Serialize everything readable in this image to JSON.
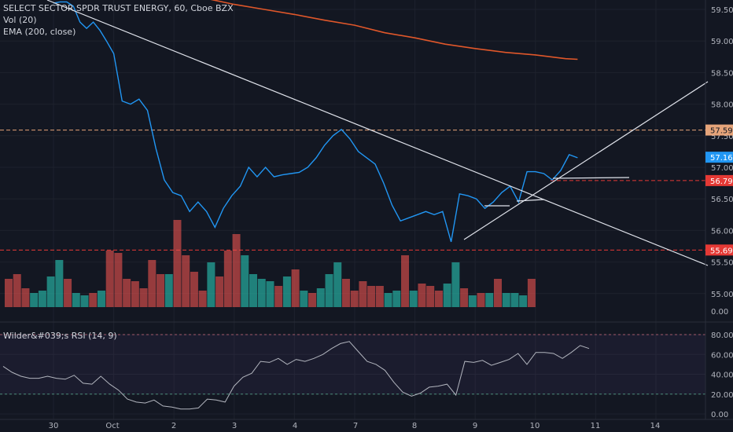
{
  "legend": {
    "title": "SELECT SECTOR SPDR TRUST ENERGY, 60, Cboe BZX",
    "vol": "Vol (20)",
    "ema": "EMA (200, close)",
    "rsi": "Wilder&#039;s RSI (14, 9)"
  },
  "colors": {
    "background": "#131722",
    "price_line": "#2196f3",
    "ema_line": "#e0572a",
    "vol_up": "#26a69a",
    "vol_down": "#ef5350",
    "trend_lines": "#e0e3eb",
    "rsi_line": "#b2b5be",
    "level_orange": "#e5a47a",
    "level_red": "#e53935"
  },
  "chart_data": {
    "type": "line",
    "x_tick_labels": [
      "30",
      "Oct",
      "2",
      "3",
      "4",
      "7",
      "8",
      "9",
      "10",
      "11",
      "14"
    ],
    "price_axis_ticks": [
      "59.50",
      "59.00",
      "58.50",
      "58.00",
      "57.50",
      "57.00",
      "56.50",
      "56.00",
      "55.50",
      "55.00"
    ],
    "volume_axis_ticks": [
      "0.00"
    ],
    "rsi_axis_ticks": [
      "80.00",
      "60.00",
      "40.00",
      "20.00",
      "0.00"
    ],
    "price_ylim": [
      54.7,
      59.7
    ],
    "rsi_ylim": [
      0,
      85
    ],
    "price_tags": [
      {
        "label": "57.59",
        "value": 57.59,
        "style": "orange"
      },
      {
        "label": "57.16",
        "value": 57.16,
        "style": "blue"
      },
      {
        "label": "56.79",
        "value": 56.79,
        "style": "red"
      },
      {
        "label": "55.69",
        "value": 55.69,
        "style": "red"
      }
    ],
    "horizontal_levels": [
      {
        "value": 57.59,
        "style": "orange"
      },
      {
        "value": 56.79,
        "style": "red"
      },
      {
        "value": 55.69,
        "style": "red"
      }
    ],
    "price_series": [
      [
        0,
        59.6
      ],
      [
        0.11,
        59.62
      ],
      [
        0.22,
        59.62
      ],
      [
        0.33,
        59.55
      ],
      [
        0.44,
        59.3
      ],
      [
        0.55,
        59.2
      ],
      [
        0.66,
        59.3
      ],
      [
        0.77,
        59.17
      ],
      [
        0.88,
        59.0
      ],
      [
        1.0,
        58.8
      ],
      [
        1.14,
        58.05
      ],
      [
        1.28,
        58.0
      ],
      [
        1.42,
        58.08
      ],
      [
        1.56,
        57.9
      ],
      [
        1.7,
        57.3
      ],
      [
        1.84,
        56.8
      ],
      [
        1.98,
        56.6
      ],
      [
        2.12,
        56.55
      ],
      [
        2.26,
        56.3
      ],
      [
        2.4,
        56.45
      ],
      [
        2.54,
        56.3
      ],
      [
        2.68,
        56.05
      ],
      [
        2.82,
        56.35
      ],
      [
        2.96,
        56.55
      ],
      [
        3.1,
        56.7
      ],
      [
        3.24,
        57.0
      ],
      [
        3.38,
        56.85
      ],
      [
        3.52,
        57.0
      ],
      [
        3.66,
        56.85
      ],
      [
        3.8,
        56.88
      ],
      [
        3.94,
        56.9
      ],
      [
        4.08,
        56.92
      ],
      [
        4.22,
        57.0
      ],
      [
        4.36,
        57.15
      ],
      [
        4.5,
        57.35
      ],
      [
        4.64,
        57.5
      ],
      [
        4.78,
        57.6
      ],
      [
        4.92,
        57.45
      ],
      [
        5.06,
        57.25
      ],
      [
        5.2,
        57.15
      ],
      [
        5.34,
        57.05
      ],
      [
        5.48,
        56.75
      ],
      [
        5.62,
        56.4
      ],
      [
        5.76,
        56.15
      ],
      [
        5.9,
        56.2
      ],
      [
        6.04,
        56.25
      ],
      [
        6.18,
        56.3
      ],
      [
        6.32,
        56.25
      ],
      [
        6.46,
        56.3
      ],
      [
        6.6,
        55.82
      ],
      [
        6.74,
        56.58
      ],
      [
        6.88,
        56.55
      ],
      [
        7.02,
        56.5
      ],
      [
        7.16,
        56.35
      ],
      [
        7.3,
        56.45
      ],
      [
        7.44,
        56.6
      ],
      [
        7.58,
        56.7
      ],
      [
        7.72,
        56.45
      ],
      [
        7.86,
        56.93
      ],
      [
        8.0,
        56.93
      ],
      [
        8.14,
        56.9
      ],
      [
        8.28,
        56.8
      ],
      [
        8.42,
        56.95
      ],
      [
        8.56,
        57.2
      ],
      [
        8.7,
        57.15
      ]
    ],
    "ema_series": [
      [
        2.25,
        59.72
      ],
      [
        2.5,
        59.68
      ],
      [
        3.0,
        59.58
      ],
      [
        3.5,
        59.5
      ],
      [
        4.0,
        59.42
      ],
      [
        4.5,
        59.33
      ],
      [
        5.0,
        59.25
      ],
      [
        5.5,
        59.13
      ],
      [
        6.0,
        59.05
      ],
      [
        6.5,
        58.95
      ],
      [
        7.0,
        58.88
      ],
      [
        7.5,
        58.82
      ],
      [
        8.0,
        58.78
      ],
      [
        8.5,
        58.72
      ],
      [
        8.7,
        58.71
      ]
    ],
    "volume": [
      {
        "x": 0.0,
        "v": 0.12,
        "dir": "down"
      },
      {
        "x": 0.14,
        "v": 0.14,
        "dir": "down"
      },
      {
        "x": 0.28,
        "v": 0.08,
        "dir": "down"
      },
      {
        "x": 0.42,
        "v": 0.06,
        "dir": "up"
      },
      {
        "x": 0.56,
        "v": 0.07,
        "dir": "up"
      },
      {
        "x": 0.7,
        "v": 0.13,
        "dir": "up"
      },
      {
        "x": 0.84,
        "v": 0.2,
        "dir": "up"
      },
      {
        "x": 0.98,
        "v": 0.12,
        "dir": "down"
      },
      {
        "x": 1.12,
        "v": 0.06,
        "dir": "up"
      },
      {
        "x": 1.26,
        "v": 0.05,
        "dir": "up"
      },
      {
        "x": 1.4,
        "v": 0.06,
        "dir": "down"
      },
      {
        "x": 1.54,
        "v": 0.07,
        "dir": "up"
      },
      {
        "x": 1.68,
        "v": 0.24,
        "dir": "down"
      },
      {
        "x": 1.82,
        "v": 0.23,
        "dir": "down"
      },
      {
        "x": 1.96,
        "v": 0.12,
        "dir": "down"
      },
      {
        "x": 2.1,
        "v": 0.11,
        "dir": "down"
      },
      {
        "x": 2.24,
        "v": 0.08,
        "dir": "down"
      },
      {
        "x": 2.38,
        "v": 0.2,
        "dir": "down"
      },
      {
        "x": 2.52,
        "v": 0.14,
        "dir": "down"
      },
      {
        "x": 2.66,
        "v": 0.14,
        "dir": "up"
      },
      {
        "x": 2.8,
        "v": 0.37,
        "dir": "down"
      },
      {
        "x": 2.94,
        "v": 0.22,
        "dir": "down"
      },
      {
        "x": 3.08,
        "v": 0.15,
        "dir": "down"
      },
      {
        "x": 3.22,
        "v": 0.07,
        "dir": "down"
      },
      {
        "x": 3.36,
        "v": 0.19,
        "dir": "up"
      },
      {
        "x": 3.5,
        "v": 0.13,
        "dir": "down"
      },
      {
        "x": 3.64,
        "v": 0.24,
        "dir": "down"
      },
      {
        "x": 3.78,
        "v": 0.31,
        "dir": "down"
      },
      {
        "x": 3.92,
        "v": 0.22,
        "dir": "up"
      },
      {
        "x": 4.06,
        "v": 0.14,
        "dir": "up"
      },
      {
        "x": 4.2,
        "v": 0.12,
        "dir": "up"
      },
      {
        "x": 4.34,
        "v": 0.11,
        "dir": "up"
      },
      {
        "x": 4.48,
        "v": 0.09,
        "dir": "down"
      },
      {
        "x": 4.62,
        "v": 0.13,
        "dir": "up"
      },
      {
        "x": 4.76,
        "v": 0.16,
        "dir": "down"
      },
      {
        "x": 4.9,
        "v": 0.07,
        "dir": "up"
      },
      {
        "x": 5.04,
        "v": 0.06,
        "dir": "down"
      },
      {
        "x": 5.18,
        "v": 0.08,
        "dir": "up"
      },
      {
        "x": 5.32,
        "v": 0.14,
        "dir": "up"
      },
      {
        "x": 5.46,
        "v": 0.19,
        "dir": "up"
      },
      {
        "x": 5.6,
        "v": 0.12,
        "dir": "down"
      },
      {
        "x": 5.74,
        "v": 0.07,
        "dir": "down"
      },
      {
        "x": 5.88,
        "v": 0.11,
        "dir": "down"
      },
      {
        "x": 6.02,
        "v": 0.09,
        "dir": "down"
      },
      {
        "x": 6.16,
        "v": 0.09,
        "dir": "down"
      },
      {
        "x": 6.3,
        "v": 0.06,
        "dir": "up"
      },
      {
        "x": 6.44,
        "v": 0.07,
        "dir": "up"
      },
      {
        "x": 6.58,
        "v": 0.22,
        "dir": "down"
      },
      {
        "x": 6.72,
        "v": 0.07,
        "dir": "up"
      },
      {
        "x": 6.86,
        "v": 0.1,
        "dir": "down"
      },
      {
        "x": 7.0,
        "v": 0.09,
        "dir": "down"
      },
      {
        "x": 7.14,
        "v": 0.07,
        "dir": "down"
      },
      {
        "x": 7.28,
        "v": 0.1,
        "dir": "up"
      },
      {
        "x": 7.42,
        "v": 0.19,
        "dir": "up"
      },
      {
        "x": 7.56,
        "v": 0.08,
        "dir": "down"
      },
      {
        "x": 7.7,
        "v": 0.05,
        "dir": "up"
      },
      {
        "x": 7.84,
        "v": 0.06,
        "dir": "down"
      },
      {
        "x": 7.98,
        "v": 0.06,
        "dir": "up"
      },
      {
        "x": 8.12,
        "v": 0.12,
        "dir": "down"
      },
      {
        "x": 8.26,
        "v": 0.06,
        "dir": "up"
      },
      {
        "x": 8.4,
        "v": 0.06,
        "dir": "up"
      },
      {
        "x": 8.54,
        "v": 0.05,
        "dir": "up"
      },
      {
        "x": 8.68,
        "v": 0.12,
        "dir": "down"
      }
    ],
    "rsi_series": [
      [
        0,
        48
      ],
      [
        0.2,
        42
      ],
      [
        0.4,
        38
      ],
      [
        0.6,
        36
      ],
      [
        0.8,
        36
      ],
      [
        1.0,
        38
      ],
      [
        1.2,
        36
      ],
      [
        1.4,
        35
      ],
      [
        1.6,
        39
      ],
      [
        1.8,
        31
      ],
      [
        2.0,
        30
      ],
      [
        2.2,
        38
      ],
      [
        2.4,
        30
      ],
      [
        2.6,
        24
      ],
      [
        2.8,
        15
      ],
      [
        3.0,
        12
      ],
      [
        3.2,
        11
      ],
      [
        3.4,
        14
      ],
      [
        3.6,
        8
      ],
      [
        3.8,
        7
      ],
      [
        4.0,
        5
      ],
      [
        4.2,
        5
      ],
      [
        4.4,
        6
      ],
      [
        4.6,
        15
      ],
      [
        4.8,
        14
      ],
      [
        5.0,
        12
      ],
      [
        5.2,
        28
      ],
      [
        5.4,
        37
      ],
      [
        5.6,
        41
      ],
      [
        5.8,
        53
      ],
      [
        6.0,
        52
      ],
      [
        6.2,
        56
      ],
      [
        6.4,
        50
      ],
      [
        6.6,
        55
      ],
      [
        6.8,
        53
      ],
      [
        7.0,
        56
      ],
      [
        7.2,
        60
      ],
      [
        7.4,
        66
      ],
      [
        7.6,
        71
      ],
      [
        7.8,
        73
      ],
      [
        8.0,
        63
      ],
      [
        8.2,
        53
      ],
      [
        8.4,
        50
      ],
      [
        8.6,
        44
      ],
      [
        8.8,
        32
      ],
      [
        9.0,
        22
      ],
      [
        9.2,
        18
      ],
      [
        9.4,
        21
      ],
      [
        9.6,
        27
      ],
      [
        9.8,
        28
      ],
      [
        10.0,
        30
      ],
      [
        10.2,
        19
      ],
      [
        10.4,
        53
      ],
      [
        10.6,
        52
      ],
      [
        10.8,
        54
      ],
      [
        11.0,
        49
      ],
      [
        11.2,
        52
      ],
      [
        11.4,
        55
      ],
      [
        11.6,
        61
      ],
      [
        11.8,
        50
      ],
      [
        12.0,
        62
      ],
      [
        12.2,
        62
      ],
      [
        12.4,
        61
      ],
      [
        12.6,
        56
      ],
      [
        12.8,
        62
      ],
      [
        13.0,
        69
      ],
      [
        13.2,
        66
      ]
    ],
    "rsi_bands": [
      80,
      20
    ]
  }
}
